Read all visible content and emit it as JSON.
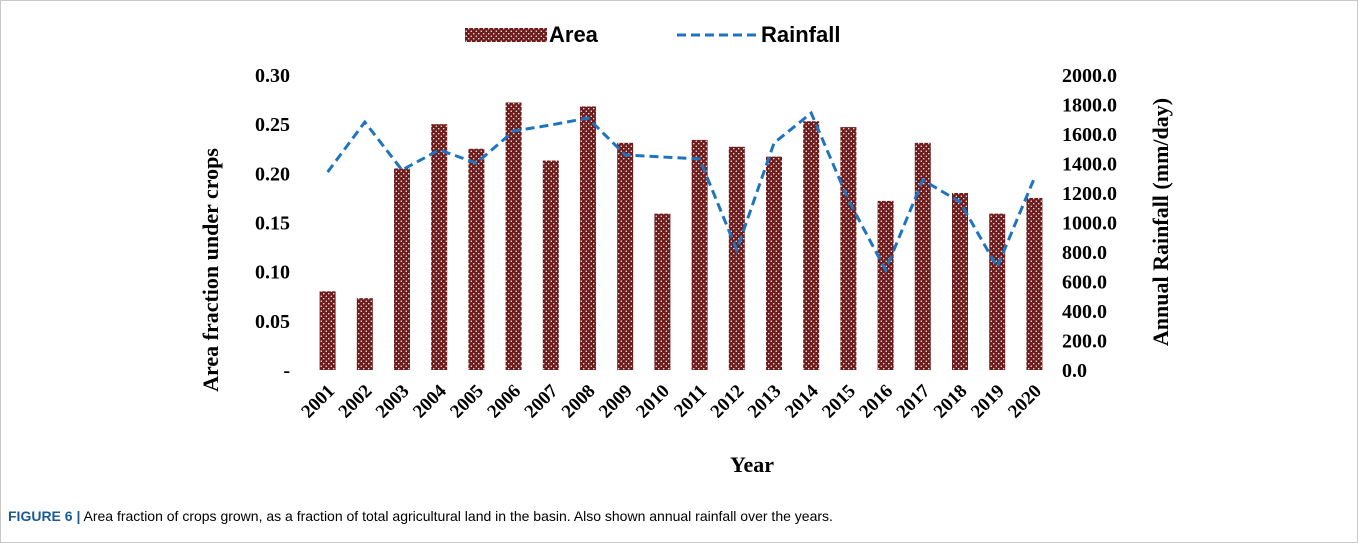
{
  "chart_data": {
    "type": "bar",
    "x_label": "Year",
    "y_label": "Area fraction under crops",
    "y2_label": "Annual Rainfall (mm/day)",
    "categories": [
      "2001",
      "2002",
      "2003",
      "2004",
      "2005",
      "2006",
      "2007",
      "2008",
      "2009",
      "2010",
      "2011",
      "2012",
      "2013",
      "2014",
      "2015",
      "2016",
      "2017",
      "2018",
      "2019",
      "2020"
    ],
    "series": [
      {
        "name": "Area",
        "type": "bar",
        "color": "#6e1c1c",
        "values": [
          0.08,
          0.073,
          0.205,
          0.25,
          0.225,
          0.272,
          0.213,
          0.268,
          0.231,
          0.159,
          0.234,
          0.227,
          0.217,
          0.253,
          0.247,
          0.172,
          0.231,
          0.18,
          0.159,
          0.175
        ]
      },
      {
        "name": "Rainfall",
        "type": "line",
        "axis": "y2",
        "dashed": true,
        "color": "#1f74c1",
        "values": [
          1342,
          1681,
          1356,
          1492,
          1403,
          1620,
          1661,
          1708,
          1458,
          1444,
          1431,
          814,
          1539,
          1742,
          1153,
          678,
          1288,
          1139,
          698,
          1302
        ]
      }
    ],
    "ylim": [
      0,
      0.3
    ],
    "yticks": [
      {
        "value": 0,
        "label": "-"
      },
      0.05,
      {
        "value": 0.1,
        "label": "0.10"
      },
      0.15,
      {
        "value": 0.2,
        "label": "0.20"
      },
      0.25,
      {
        "value": 0.3,
        "label": "0.30"
      }
    ],
    "y2lim": [
      0,
      2000
    ],
    "y2ticks": [
      {
        "value": 0,
        "label": "0.0"
      },
      {
        "value": 200,
        "label": "200.0"
      },
      {
        "value": 400,
        "label": "400.0"
      },
      {
        "value": 600,
        "label": "600.0"
      },
      {
        "value": 800,
        "label": "800.0"
      },
      {
        "value": 1000,
        "label": "1000.0"
      },
      {
        "value": 1200,
        "label": "1200.0"
      },
      {
        "value": 1400,
        "label": "1400.0"
      },
      {
        "value": 1600,
        "label": "1600.0"
      },
      {
        "value": 1800,
        "label": "1800.0"
      },
      {
        "value": 2000,
        "label": "2000.0"
      }
    ],
    "grid": false,
    "legend": "top"
  },
  "caption": {
    "label": "FIGURE 6 |",
    "text": "Area fraction of crops grown, as a fraction of total agricultural land in the basin. Also shown annual rainfall over the years."
  }
}
